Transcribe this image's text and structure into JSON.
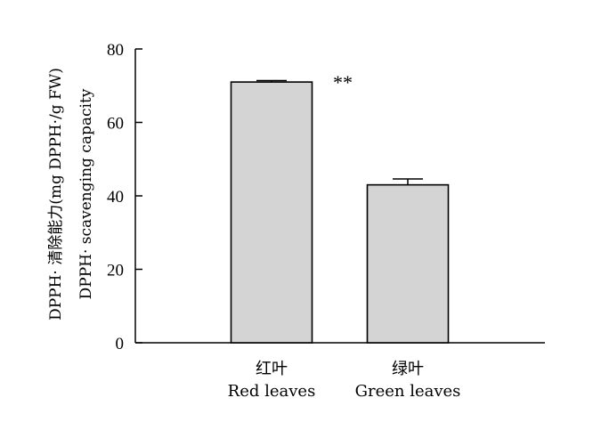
{
  "chart_data": {
    "type": "bar",
    "categories": [
      "红叶\nRed leaves",
      "绿叶\nGreen leaves"
    ],
    "category_lines": [
      [
        "红叶",
        "Red leaves"
      ],
      [
        "绿叶",
        "Green leaves"
      ]
    ],
    "values": [
      71,
      43
    ],
    "error": [
      0.4,
      1.6
    ],
    "ylim": [
      0,
      80
    ],
    "yticks": [
      "0",
      "20",
      "40",
      "60",
      "80"
    ],
    "ylabel_lines": [
      "DPPH· 清除能力(mg DPPH·/g FW)",
      "DPPH· scavenging capacity"
    ],
    "annotation": "**",
    "bar_color": "#d4d4d4",
    "grid": false
  }
}
